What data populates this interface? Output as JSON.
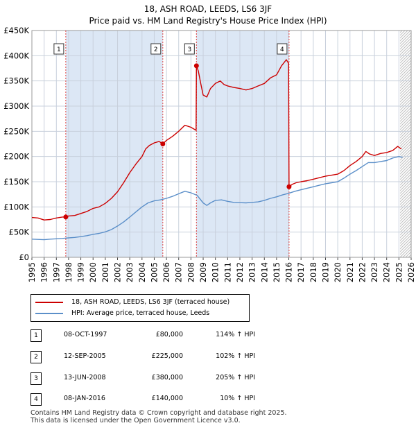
{
  "title_line1": "18, ASH ROAD, LEEDS, LS6 3JF",
  "title_line2": "Price paid vs. HM Land Registry's House Price Index (HPI)",
  "legend": {
    "property_label": "18, ASH ROAD, LEEDS, LS6 3JF (terraced house)",
    "hpi_label": "HPI: Average price, terraced house, Leeds"
  },
  "colors": {
    "property": "#cc0000",
    "hpi": "#5b8fc9",
    "shade": "#dce7f5",
    "grid": "#c8d0dc",
    "hatch": "#bfbfbf",
    "vline": "#dd4444"
  },
  "transactions": [
    {
      "num": "1",
      "date": "08-OCT-1997",
      "price": "£80,000",
      "hpi": "114% ↑ HPI"
    },
    {
      "num": "2",
      "date": "12-SEP-2005",
      "price": "£225,000",
      "hpi": "102% ↑ HPI"
    },
    {
      "num": "3",
      "date": "13-JUN-2008",
      "price": "£380,000",
      "hpi": "205% ↑ HPI"
    },
    {
      "num": "4",
      "date": "08-JAN-2016",
      "price": "£140,000",
      "hpi": "10% ↑ HPI"
    }
  ],
  "footer_line1": "Contains HM Land Registry data © Crown copyright and database right 2025.",
  "footer_line2": "This data is licensed under the Open Government Licence v3.0.",
  "chart_data": {
    "type": "line",
    "title": "Price paid vs. HM Land Registry's House Price Index (HPI)",
    "xlabel": "",
    "ylabel": "",
    "xlim": [
      1995,
      2026
    ],
    "ylim": [
      0,
      450000
    ],
    "y_ticks": [
      0,
      50000,
      100000,
      150000,
      200000,
      250000,
      300000,
      350000,
      400000,
      450000
    ],
    "y_tick_labels": [
      "£0",
      "£50K",
      "£100K",
      "£150K",
      "£200K",
      "£250K",
      "£300K",
      "£350K",
      "£400K",
      "£450K"
    ],
    "x_ticks": [
      1995,
      1996,
      1997,
      1998,
      1999,
      2000,
      2001,
      2002,
      2003,
      2004,
      2005,
      2006,
      2007,
      2008,
      2009,
      2010,
      2011,
      2012,
      2013,
      2014,
      2015,
      2016,
      2017,
      2018,
      2019,
      2020,
      2021,
      2022,
      2023,
      2024,
      2025,
      2026
    ],
    "x_tick_labels": [
      "1995",
      "1996",
      "1997",
      "1998",
      "1999",
      "2000",
      "2001",
      "2002",
      "2003",
      "2004",
      "2005",
      "2006",
      "2007",
      "2008",
      "2009",
      "2010",
      "2011",
      "2012",
      "2013",
      "2014",
      "2015",
      "2016",
      "2017",
      "2018",
      "2019",
      "2020",
      "2021",
      "2022",
      "2023",
      "2024",
      "2025",
      "2026"
    ],
    "grid": true,
    "shaded_ranges": [
      [
        1997.77,
        2005.7
      ],
      [
        2008.45,
        2016.02
      ]
    ],
    "forecast_from": 2025.1,
    "sale_markers": [
      {
        "label": "1",
        "x": 1997.77,
        "y": 80000
      },
      {
        "label": "2",
        "x": 2005.7,
        "y": 225000
      },
      {
        "label": "3",
        "x": 2008.45,
        "y": 380000
      },
      {
        "label": "4",
        "x": 2016.02,
        "y": 140000
      }
    ],
    "series": [
      {
        "name": "18, ASH ROAD, LEEDS, LS6 3JF (terraced house)",
        "color": "#cc0000",
        "points": [
          [
            1995,
            79000
          ],
          [
            1995.5,
            78000
          ],
          [
            1996,
            74000
          ],
          [
            1996.5,
            75000
          ],
          [
            1997,
            78000
          ],
          [
            1997.5,
            80000
          ],
          [
            1997.77,
            80000
          ],
          [
            1998,
            82000
          ],
          [
            1998.5,
            83000
          ],
          [
            1999,
            87000
          ],
          [
            1999.5,
            91000
          ],
          [
            2000,
            97000
          ],
          [
            2000.5,
            100000
          ],
          [
            2001,
            107000
          ],
          [
            2001.5,
            117000
          ],
          [
            2002,
            130000
          ],
          [
            2002.5,
            148000
          ],
          [
            2003,
            168000
          ],
          [
            2003.5,
            185000
          ],
          [
            2004,
            200000
          ],
          [
            2004.3,
            215000
          ],
          [
            2004.6,
            222000
          ],
          [
            2005,
            227000
          ],
          [
            2005.4,
            230000
          ],
          [
            2005.7,
            225000
          ],
          [
            2006,
            232000
          ],
          [
            2006.5,
            240000
          ],
          [
            2007,
            250000
          ],
          [
            2007.5,
            262000
          ],
          [
            2008,
            258000
          ],
          [
            2008.42,
            252000
          ],
          [
            2008.45,
            380000
          ],
          [
            2008.6,
            370000
          ],
          [
            2008.8,
            345000
          ],
          [
            2009,
            322000
          ],
          [
            2009.3,
            318000
          ],
          [
            2009.6,
            335000
          ],
          [
            2010,
            345000
          ],
          [
            2010.4,
            350000
          ],
          [
            2010.7,
            343000
          ],
          [
            2011,
            340000
          ],
          [
            2011.5,
            337000
          ],
          [
            2012,
            335000
          ],
          [
            2012.5,
            332000
          ],
          [
            2013,
            335000
          ],
          [
            2013.5,
            340000
          ],
          [
            2014,
            345000
          ],
          [
            2014.5,
            356000
          ],
          [
            2015,
            362000
          ],
          [
            2015.4,
            380000
          ],
          [
            2015.8,
            392000
          ],
          [
            2015.98,
            385000
          ],
          [
            2016.02,
            140000
          ],
          [
            2016.3,
            145000
          ],
          [
            2016.6,
            148000
          ],
          [
            2017,
            150000
          ],
          [
            2017.5,
            152000
          ],
          [
            2018,
            155000
          ],
          [
            2018.5,
            158000
          ],
          [
            2019,
            161000
          ],
          [
            2019.5,
            163000
          ],
          [
            2020,
            165000
          ],
          [
            2020.5,
            172000
          ],
          [
            2021,
            182000
          ],
          [
            2021.5,
            190000
          ],
          [
            2022,
            200000
          ],
          [
            2022.3,
            210000
          ],
          [
            2022.6,
            205000
          ],
          [
            2023,
            202000
          ],
          [
            2023.5,
            206000
          ],
          [
            2024,
            208000
          ],
          [
            2024.5,
            212000
          ],
          [
            2024.9,
            220000
          ],
          [
            2025.2,
            215000
          ]
        ]
      },
      {
        "name": "HPI: Average price, terraced house, Leeds",
        "color": "#5b8fc9",
        "points": [
          [
            1995,
            36000
          ],
          [
            1995.5,
            35500
          ],
          [
            1996,
            35000
          ],
          [
            1996.5,
            36000
          ],
          [
            1997,
            36800
          ],
          [
            1997.5,
            37500
          ],
          [
            1998,
            38500
          ],
          [
            1998.5,
            39500
          ],
          [
            1999,
            41000
          ],
          [
            1999.5,
            43000
          ],
          [
            2000,
            45500
          ],
          [
            2000.5,
            47500
          ],
          [
            2001,
            50500
          ],
          [
            2001.5,
            55000
          ],
          [
            2002,
            62000
          ],
          [
            2002.5,
            70000
          ],
          [
            2003,
            80000
          ],
          [
            2003.5,
            90000
          ],
          [
            2004,
            100000
          ],
          [
            2004.5,
            108000
          ],
          [
            2005,
            112000
          ],
          [
            2005.5,
            114000
          ],
          [
            2006,
            117000
          ],
          [
            2006.5,
            121000
          ],
          [
            2007,
            126000
          ],
          [
            2007.5,
            131000
          ],
          [
            2008,
            128000
          ],
          [
            2008.5,
            123000
          ],
          [
            2009,
            108000
          ],
          [
            2009.3,
            103000
          ],
          [
            2009.6,
            108000
          ],
          [
            2010,
            113000
          ],
          [
            2010.5,
            114000
          ],
          [
            2011,
            111000
          ],
          [
            2011.5,
            109000
          ],
          [
            2012,
            108500
          ],
          [
            2012.5,
            108000
          ],
          [
            2013,
            109000
          ],
          [
            2013.5,
            110000
          ],
          [
            2014,
            113000
          ],
          [
            2014.5,
            117000
          ],
          [
            2015,
            120000
          ],
          [
            2015.5,
            124000
          ],
          [
            2016,
            127000
          ],
          [
            2016.5,
            131000
          ],
          [
            2017,
            134000
          ],
          [
            2017.5,
            137000
          ],
          [
            2018,
            140000
          ],
          [
            2018.5,
            143000
          ],
          [
            2019,
            146000
          ],
          [
            2019.5,
            148000
          ],
          [
            2020,
            150000
          ],
          [
            2020.5,
            157000
          ],
          [
            2021,
            165000
          ],
          [
            2021.5,
            172000
          ],
          [
            2022,
            180000
          ],
          [
            2022.5,
            188000
          ],
          [
            2023,
            188000
          ],
          [
            2023.5,
            190000
          ],
          [
            2024,
            192000
          ],
          [
            2024.5,
            197000
          ],
          [
            2025,
            200000
          ],
          [
            2025.3,
            198000
          ]
        ]
      }
    ]
  }
}
